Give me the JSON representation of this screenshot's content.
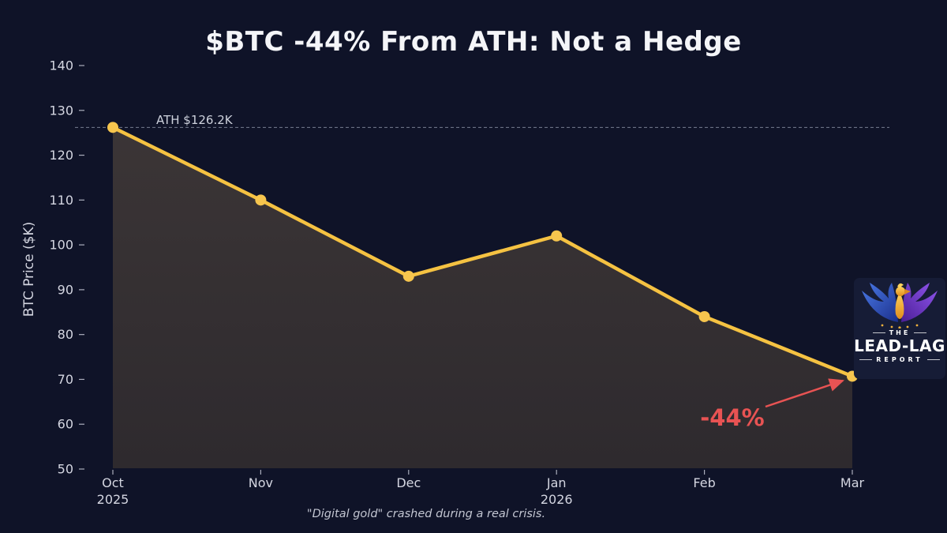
{
  "title": "$BTC -44% From ATH: Not a Hedge",
  "caption": "\"Digital gold\" crashed during a real crisis.",
  "chart_data": {
    "type": "line",
    "title": "$BTC -44% From ATH: Not a Hedge",
    "categories": [
      "Oct 2025",
      "Nov",
      "Dec",
      "Jan 2026",
      "Feb",
      "Mar"
    ],
    "x_tick_lines": [
      [
        "Oct",
        "2025"
      ],
      [
        "Nov"
      ],
      [
        "Dec"
      ],
      [
        "Jan",
        "2026"
      ],
      [
        "Feb"
      ],
      [
        "Mar"
      ]
    ],
    "series": [
      {
        "name": "BTC Price ($K)",
        "values": [
          126.2,
          110,
          93,
          102,
          84,
          70.7
        ]
      }
    ],
    "xlabel": "",
    "ylabel": "BTC Price ($K)",
    "ylim": [
      50,
      140
    ],
    "yticks": [
      50,
      60,
      70,
      80,
      90,
      100,
      110,
      120,
      130,
      140
    ],
    "grid": "off",
    "legend": "none",
    "ath_line": {
      "value": 126.2,
      "label": "ATH $126.2K",
      "style": "dashed"
    },
    "annotation": {
      "text": "-44%",
      "color": "#e85353",
      "points_to": "Mar 70.7"
    },
    "colors": {
      "background": "#0f1328",
      "line": "#f5c242",
      "marker": "#f6c54e",
      "fill_top": "#3b3536",
      "fill_bottom": "#2e2a2e",
      "ath_dash": "#9ba1b4",
      "tick_text": "#d4d6e1",
      "annotation_red": "#e85353",
      "title_text": "#f4f5f8"
    }
  },
  "logo": {
    "the": "THE",
    "name": "LEAD-LAG",
    "report": "REPORT"
  }
}
